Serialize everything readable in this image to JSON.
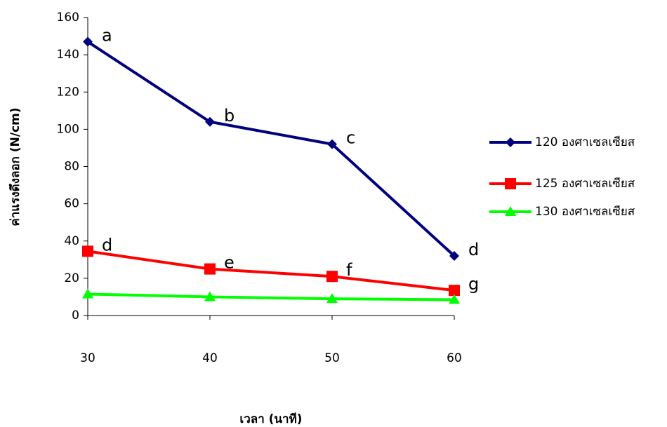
{
  "chart_data": {
    "type": "line",
    "x_label": "เวลา (นาที)",
    "y_label": "ค่าแรงดึงลอก (N/cm)",
    "x": [
      30,
      40,
      50,
      60
    ],
    "xlim": [
      30,
      60
    ],
    "xticks": [
      30,
      40,
      50,
      60
    ],
    "ylim": [
      0,
      160
    ],
    "yticks": [
      0,
      20,
      40,
      60,
      80,
      100,
      120,
      140,
      160
    ],
    "legend": "right",
    "series": [
      {
        "name": "120 องศาเซลเซียส",
        "color": "#000080",
        "marker": "diamond",
        "values": [
          147,
          104,
          92,
          32
        ],
        "point_labels": [
          "a",
          "b",
          "c",
          "d"
        ]
      },
      {
        "name": "125 องศาเซลเซียส",
        "color": "#ff0000",
        "marker": "square",
        "values": [
          34.5,
          25,
          21,
          13.5
        ],
        "point_labels": [
          "d",
          "e",
          "f",
          "g"
        ]
      },
      {
        "name": "130 องศาเซลเซียส",
        "color": "#00ff00",
        "marker": "triangle",
        "values": [
          11.5,
          10,
          9,
          8.5
        ]
      }
    ]
  }
}
